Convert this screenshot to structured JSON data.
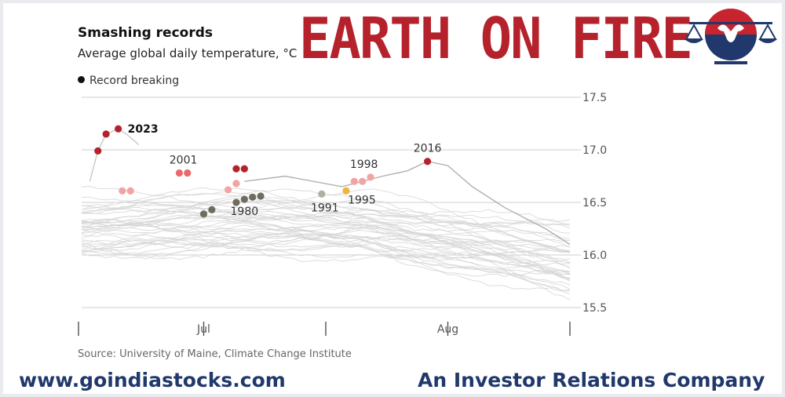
{
  "banner": {
    "text": "EARTH ON FIRE",
    "color": "#b5222c"
  },
  "logo": {
    "icon": "scales-bull-logo-icon"
  },
  "footer": {
    "website": "www.goindiastocks.com",
    "tagline": "An Investor Relations Company",
    "color": "#20386b"
  },
  "source": "Source: University of Maine, Climate Change Institute",
  "chart_data": {
    "type": "line",
    "title": "Smashing records",
    "subtitle": "Average global daily temperature, °C",
    "legend": {
      "label": "Record breaking",
      "placement": "top-left"
    },
    "xlabel": "",
    "ylabel": "",
    "ylim": [
      15.5,
      17.5
    ],
    "yticks": [
      15.5,
      16.0,
      16.5,
      17.0,
      17.5
    ],
    "ytick_labels": [
      "15.5",
      "16.0",
      "16.5",
      "17.0",
      "17.5"
    ],
    "y_axis_side": "right",
    "xticks": [
      {
        "day": 0,
        "label": ""
      },
      {
        "day": 15,
        "label": "Jul"
      },
      {
        "day": 30,
        "label": ""
      },
      {
        "day": 45,
        "label": "Aug"
      },
      {
        "day": 60,
        "label": ""
      }
    ],
    "grid": "horizontal",
    "highlight_series": [
      {
        "name": "2023",
        "color": "#b5222c",
        "points": [
          [
            1.0,
            16.7
          ],
          [
            2.0,
            16.99
          ],
          [
            3.0,
            17.15
          ],
          [
            4.5,
            17.2
          ],
          [
            5.5,
            17.15
          ],
          [
            7.0,
            17.05
          ]
        ]
      },
      {
        "name": "2016",
        "color": "#888888",
        "points": [
          [
            20,
            16.7
          ],
          [
            25,
            16.75
          ],
          [
            32,
            16.65
          ],
          [
            37,
            16.75
          ],
          [
            40,
            16.8
          ],
          [
            42.5,
            16.89
          ],
          [
            45,
            16.85
          ],
          [
            48,
            16.65
          ],
          [
            52,
            16.45
          ],
          [
            57,
            16.25
          ],
          [
            60,
            16.1
          ]
        ]
      }
    ],
    "records": [
      {
        "year": "2023",
        "color": "#b5222c",
        "points": [
          [
            2.0,
            16.99
          ],
          [
            3.0,
            17.15
          ],
          [
            4.5,
            17.2
          ]
        ]
      },
      {
        "year": "",
        "color": "#f2a3a3",
        "points": [
          [
            5.0,
            16.61
          ],
          [
            6.0,
            16.61
          ]
        ]
      },
      {
        "year": "2001",
        "color": "#e86b6b",
        "points": [
          [
            12.0,
            16.78
          ],
          [
            13.0,
            16.78
          ]
        ]
      },
      {
        "year": "",
        "color": "#f2a3a3",
        "points": [
          [
            18.0,
            16.62
          ],
          [
            19.0,
            16.68
          ]
        ]
      },
      {
        "year": "",
        "color": "#b5222c",
        "points": [
          [
            19.0,
            16.82
          ],
          [
            20.0,
            16.82
          ]
        ]
      },
      {
        "year": "1980",
        "color": "#6e6d5e",
        "points": [
          [
            15.0,
            16.39
          ],
          [
            16.0,
            16.43
          ],
          [
            19.0,
            16.5
          ],
          [
            20.0,
            16.53
          ],
          [
            21.0,
            16.55
          ],
          [
            22.0,
            16.56
          ]
        ]
      },
      {
        "year": "1991",
        "color": "#b1b09f",
        "points": [
          [
            29.5,
            16.58
          ]
        ]
      },
      {
        "year": "1995",
        "color": "#f0b43c",
        "points": [
          [
            32.5,
            16.61
          ]
        ]
      },
      {
        "year": "1998",
        "color": "#f2a3a3",
        "points": [
          [
            33.5,
            16.7
          ],
          [
            34.5,
            16.7
          ],
          [
            35.5,
            16.74
          ]
        ]
      },
      {
        "year": "2016",
        "color": "#b5222c",
        "points": [
          [
            42.5,
            16.89
          ]
        ]
      }
    ],
    "background_series_count": 40,
    "background_color": "#d4d4d4"
  }
}
